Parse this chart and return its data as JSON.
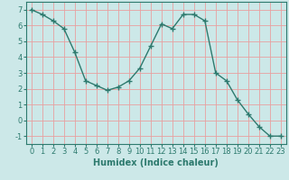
{
  "xlabel": "Humidex (Indice chaleur)",
  "x_values": [
    0,
    1,
    2,
    3,
    4,
    5,
    6,
    7,
    8,
    9,
    10,
    11,
    12,
    13,
    14,
    15,
    16,
    17,
    18,
    19,
    20,
    21,
    22,
    23
  ],
  "y_values": [
    7.0,
    6.7,
    6.3,
    5.8,
    4.3,
    2.5,
    2.2,
    1.9,
    2.1,
    2.5,
    3.3,
    4.7,
    6.1,
    5.8,
    6.7,
    6.7,
    6.3,
    3.0,
    2.5,
    1.3,
    0.4,
    -0.4,
    -1.0,
    -1.0
  ],
  "line_color": "#2d7a6e",
  "marker": "+",
  "bg_color": "#cce8e8",
  "grid_color": "#e8a0a0",
  "tick_color": "#2d7a6e",
  "label_color": "#2d7a6e",
  "ylim": [
    -1.5,
    7.5
  ],
  "xlim": [
    -0.5,
    23.5
  ],
  "yticks": [
    -1,
    0,
    1,
    2,
    3,
    4,
    5,
    6,
    7
  ],
  "xticks": [
    0,
    1,
    2,
    3,
    4,
    5,
    6,
    7,
    8,
    9,
    10,
    11,
    12,
    13,
    14,
    15,
    16,
    17,
    18,
    19,
    20,
    21,
    22,
    23
  ],
  "linewidth": 1.0,
  "markersize": 4,
  "fontsize_label": 7,
  "fontsize_tick": 6
}
